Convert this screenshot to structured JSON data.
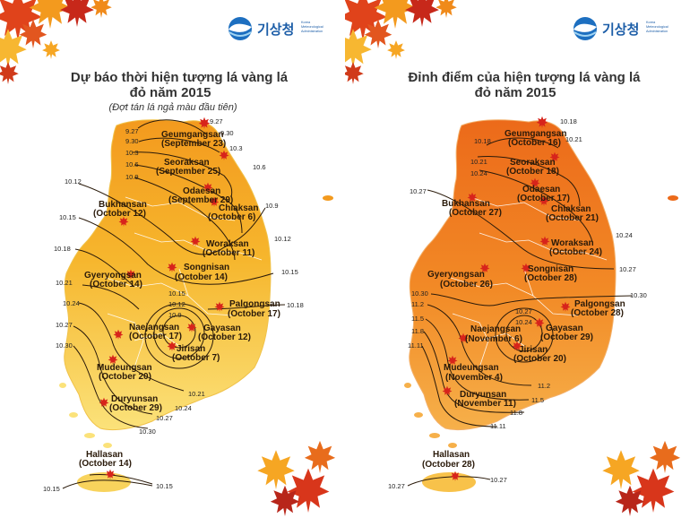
{
  "left_panel": {
    "title_line1": "Dự báo thời hiện tượng lá vàng lá",
    "title_line2": "đỏ năm 2015",
    "subtitle": "(Đợt tán lá ngả màu đầu tiên)",
    "logo_text": "기상청",
    "logo_sub": [
      "Korea",
      "Meteorological",
      "Administration"
    ],
    "map_color": "#f5b32a",
    "locations": [
      {
        "name": "Geumgangsan",
        "date": "(September 23)"
      },
      {
        "name": "Seoraksan",
        "date": "(September 25)"
      },
      {
        "name": "Odaesan",
        "date": "(September 29)"
      },
      {
        "name": "Chiaksan",
        "date": "(October 6)"
      },
      {
        "name": "Bukhansan",
        "date": "(October 12)"
      },
      {
        "name": "Woraksan",
        "date": "(October 11)"
      },
      {
        "name": "Gyeryongsan",
        "date": "(October 14)"
      },
      {
        "name": "Songnisan",
        "date": "(October 14)"
      },
      {
        "name": "Palgongsan",
        "date": "(October 17)"
      },
      {
        "name": "Naejangsan",
        "date": "(October 17)"
      },
      {
        "name": "Gayasan",
        "date": "(October 12)"
      },
      {
        "name": "Jirisan",
        "date": "(October 7)"
      },
      {
        "name": "Mudeungsan",
        "date": "(October 20)"
      },
      {
        "name": "Duryunsan",
        "date": "(October 29)"
      },
      {
        "name": "Hallasan",
        "date": "(October 14)"
      }
    ],
    "isolines": [
      "9.27",
      "9.27",
      "9.30",
      "9.30",
      "10.3",
      "10.3",
      "10.6",
      "10.6",
      "10.9",
      "10.9",
      "10.12",
      "10.12",
      "10.15",
      "10.15",
      "10.18",
      "10.18",
      "10.21",
      "10.24",
      "10.27",
      "10.30",
      "10.24",
      "10.27",
      "10.30",
      "10.21",
      "10.15",
      "10.12",
      "10.9",
      "10.15",
      "10.15"
    ]
  },
  "right_panel": {
    "title_line1": "Đỉnh điểm của hiện tượng lá vàng lá",
    "title_line2": "đỏ  năm 2015",
    "logo_text": "기상청",
    "logo_sub": [
      "Korea",
      "Meteorological",
      "Administration"
    ],
    "map_color": "#f07a1c",
    "locations": [
      {
        "name": "Geumgangsan",
        "date": "(October 16)"
      },
      {
        "name": "Seoraksan",
        "date": "(October 18)"
      },
      {
        "name": "Odaesan",
        "date": "(October 17)"
      },
      {
        "name": "Chiaksan",
        "date": "(October 21)"
      },
      {
        "name": "Bukhansan",
        "date": "(October 27)"
      },
      {
        "name": "Woraksan",
        "date": "(October 24)"
      },
      {
        "name": "Gyeryongsan",
        "date": "(October 26)"
      },
      {
        "name": "Songnisan",
        "date": "(October 28)"
      },
      {
        "name": "Palgongsan",
        "date": "(October 28)"
      },
      {
        "name": "Naejangsan",
        "date": "(November 6)"
      },
      {
        "name": "Gayasan",
        "date": "(October 29)"
      },
      {
        "name": "Jirisan",
        "date": "(October 20)"
      },
      {
        "name": "Mudeungsan",
        "date": "(November 4)"
      },
      {
        "name": "Duryunsan",
        "date": "(November 11)"
      },
      {
        "name": "Hallasan",
        "date": "(October 28)"
      }
    ],
    "isolines": [
      "10.18",
      "10.18",
      "10.21",
      "10.21",
      "10.24",
      "10.24",
      "10.27",
      "10.27",
      "10.30",
      "10.30",
      "11.2",
      "11.5",
      "11.8",
      "11.11",
      "10.27",
      "10.24",
      "11.2",
      "11.5",
      "11.8",
      "11.11",
      "10.27",
      "10.27"
    ]
  }
}
